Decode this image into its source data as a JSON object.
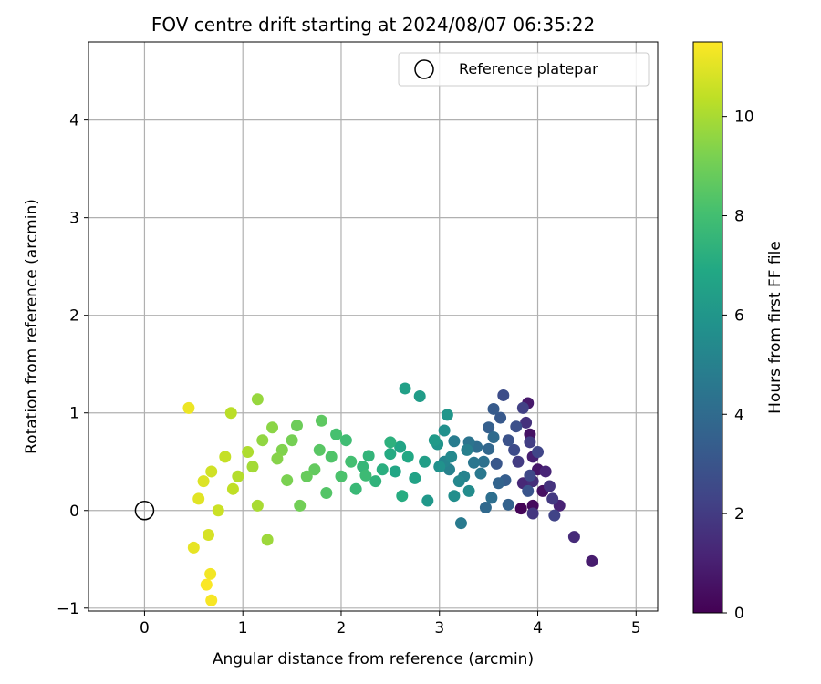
{
  "chart_data": {
    "type": "scatter",
    "title": "FOV centre drift starting at 2024/08/07 06:35:22",
    "xlabel": "Angular distance from reference (arcmin)",
    "ylabel": "Rotation from reference (arcmin)",
    "xlim": [
      -0.57,
      5.22
    ],
    "ylim": [
      -1.03,
      4.8
    ],
    "xticks": [
      0,
      1,
      2,
      3,
      4,
      5
    ],
    "yticks": [
      -1,
      0,
      1,
      2,
      3,
      4
    ],
    "xtick_labels": [
      "0",
      "1",
      "2",
      "3",
      "4",
      "5"
    ],
    "ytick_labels": [
      "−1",
      "0",
      "1",
      "2",
      "3",
      "4"
    ],
    "grid": true,
    "legend": {
      "position": "top-right",
      "entries": [
        "Reference platepar"
      ]
    },
    "reference_point": {
      "x": 0,
      "y": 0,
      "label": "Reference platepar"
    },
    "colorbar": {
      "label": "Hours from first FF file",
      "min": 0,
      "max": 11.5,
      "ticks": [
        0,
        2,
        4,
        6,
        8,
        10
      ],
      "colormap": "viridis"
    },
    "series": [
      {
        "value_fields": [
          "x (arcmin)",
          "y (arcmin)",
          "t (hours)"
        ],
        "points": [
          [
            3.83,
            0.02,
            0.1
          ],
          [
            3.95,
            0.05,
            0.3
          ],
          [
            4.05,
            0.2,
            0.5
          ],
          [
            3.92,
            0.78,
            0.6
          ],
          [
            4.0,
            0.42,
            0.7
          ],
          [
            3.9,
            1.1,
            0.8
          ],
          [
            4.55,
            -0.52,
            0.9
          ],
          [
            3.95,
            0.55,
            1.0
          ],
          [
            4.22,
            0.05,
            1.1
          ],
          [
            4.08,
            0.4,
            1.2
          ],
          [
            3.85,
            0.28,
            1.3
          ],
          [
            4.37,
            -0.27,
            1.4
          ],
          [
            3.95,
            0.3,
            1.5
          ],
          [
            3.88,
            0.9,
            1.6
          ],
          [
            4.12,
            0.25,
            1.7
          ],
          [
            3.95,
            -0.03,
            1.8
          ],
          [
            4.15,
            0.12,
            1.9
          ],
          [
            3.8,
            0.5,
            2.0
          ],
          [
            3.92,
            0.7,
            2.1
          ],
          [
            3.85,
            1.05,
            2.2
          ],
          [
            4.17,
            -0.05,
            2.3
          ],
          [
            4.0,
            0.6,
            2.4
          ],
          [
            3.92,
            0.36,
            2.5
          ],
          [
            3.76,
            0.62,
            2.6
          ],
          [
            3.65,
            1.18,
            2.7
          ],
          [
            3.78,
            0.86,
            2.8
          ],
          [
            3.7,
            0.72,
            2.9
          ],
          [
            3.9,
            0.2,
            3.0
          ],
          [
            3.58,
            0.48,
            3.1
          ],
          [
            3.62,
            0.95,
            3.2
          ],
          [
            3.55,
            1.04,
            3.3
          ],
          [
            3.67,
            0.31,
            3.4
          ],
          [
            3.5,
            0.85,
            3.5
          ],
          [
            3.7,
            0.06,
            3.6
          ],
          [
            3.6,
            0.28,
            3.7
          ],
          [
            3.5,
            0.63,
            3.8
          ],
          [
            3.47,
            0.03,
            3.9
          ],
          [
            3.55,
            0.75,
            4.0
          ],
          [
            3.38,
            0.65,
            4.1
          ],
          [
            3.53,
            0.13,
            4.2
          ],
          [
            3.45,
            0.5,
            4.3
          ],
          [
            3.3,
            0.7,
            4.4
          ],
          [
            3.35,
            0.49,
            4.5
          ],
          [
            3.42,
            0.38,
            4.6
          ],
          [
            3.22,
            -0.13,
            4.7
          ],
          [
            3.15,
            0.71,
            4.8
          ],
          [
            3.28,
            0.62,
            4.9
          ],
          [
            3.1,
            0.42,
            5.0
          ],
          [
            3.25,
            0.35,
            5.1
          ],
          [
            3.05,
            0.5,
            5.2
          ],
          [
            3.2,
            0.3,
            5.3
          ],
          [
            3.12,
            0.55,
            5.4
          ],
          [
            3.3,
            0.2,
            5.5
          ],
          [
            3.15,
            0.15,
            5.6
          ],
          [
            3.05,
            0.82,
            5.7
          ],
          [
            3.0,
            0.45,
            5.8
          ],
          [
            2.98,
            0.68,
            5.9
          ],
          [
            3.08,
            0.98,
            6.0
          ],
          [
            2.88,
            0.1,
            6.1
          ],
          [
            2.95,
            0.72,
            6.2
          ],
          [
            2.8,
            1.17,
            6.3
          ],
          [
            2.85,
            0.5,
            6.4
          ],
          [
            2.65,
            1.25,
            6.5
          ],
          [
            2.75,
            0.33,
            6.6
          ],
          [
            2.6,
            0.65,
            6.7
          ],
          [
            2.55,
            0.4,
            6.8
          ],
          [
            2.68,
            0.55,
            6.9
          ],
          [
            2.5,
            0.58,
            7.0
          ],
          [
            2.62,
            0.15,
            7.1
          ],
          [
            2.42,
            0.42,
            7.2
          ],
          [
            2.5,
            0.7,
            7.3
          ],
          [
            2.35,
            0.3,
            7.4
          ],
          [
            2.28,
            0.56,
            7.5
          ],
          [
            2.22,
            0.45,
            7.6
          ],
          [
            2.15,
            0.22,
            7.7
          ],
          [
            2.25,
            0.36,
            7.8
          ],
          [
            2.05,
            0.72,
            7.9
          ],
          [
            2.1,
            0.5,
            8.0
          ],
          [
            1.95,
            0.78,
            8.1
          ],
          [
            2.0,
            0.35,
            8.2
          ],
          [
            1.9,
            0.55,
            8.3
          ],
          [
            1.85,
            0.18,
            8.4
          ],
          [
            1.78,
            0.62,
            8.5
          ],
          [
            1.8,
            0.92,
            8.6
          ],
          [
            1.73,
            0.42,
            8.7
          ],
          [
            1.65,
            0.35,
            8.8
          ],
          [
            1.55,
            0.87,
            8.9
          ],
          [
            1.58,
            0.05,
            9.0
          ],
          [
            1.5,
            0.72,
            9.1
          ],
          [
            1.45,
            0.31,
            9.2
          ],
          [
            1.4,
            0.62,
            9.3
          ],
          [
            1.35,
            0.53,
            9.4
          ],
          [
            1.3,
            0.85,
            9.5
          ],
          [
            1.2,
            0.72,
            9.6
          ],
          [
            1.15,
            1.14,
            9.7
          ],
          [
            1.25,
            -0.3,
            9.8
          ],
          [
            1.1,
            0.45,
            9.9
          ],
          [
            1.15,
            0.05,
            10.0
          ],
          [
            1.05,
            0.6,
            10.1
          ],
          [
            0.95,
            0.35,
            10.2
          ],
          [
            0.88,
            1.0,
            10.3
          ],
          [
            0.9,
            0.22,
            10.4
          ],
          [
            0.82,
            0.55,
            10.5
          ],
          [
            0.75,
            0.0,
            10.6
          ],
          [
            0.68,
            0.4,
            10.7
          ],
          [
            0.65,
            -0.25,
            10.8
          ],
          [
            0.6,
            0.3,
            10.9
          ],
          [
            0.55,
            0.12,
            11.0
          ],
          [
            0.5,
            -0.38,
            11.1
          ],
          [
            0.45,
            1.05,
            11.2
          ],
          [
            0.67,
            -0.65,
            11.3
          ],
          [
            0.68,
            -0.92,
            11.4
          ],
          [
            0.63,
            -0.76,
            11.45
          ]
        ]
      }
    ]
  }
}
